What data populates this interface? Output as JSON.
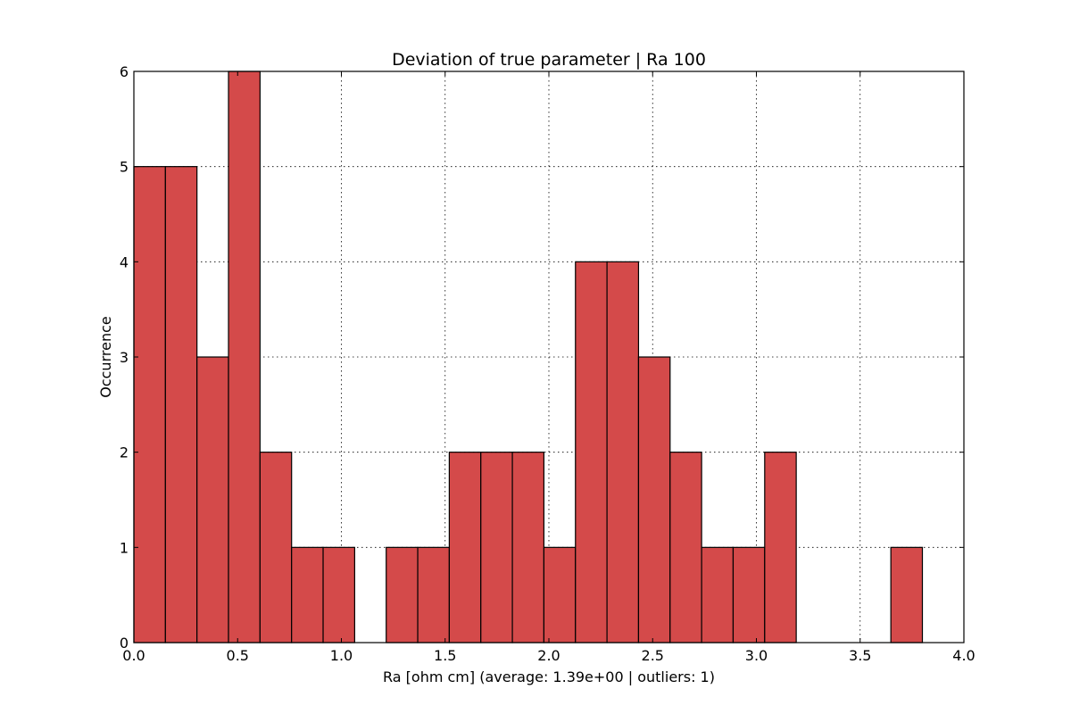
{
  "chart_data": {
    "type": "bar",
    "title": "Deviation of true parameter | Ra 100",
    "xlabel": "Ra [ohm cm] (average: 1.39e+00 | outliers: 1)",
    "ylabel": "Occurrence",
    "xlim": [
      0.0,
      4.0
    ],
    "ylim": [
      0,
      6
    ],
    "xticks": [
      "0.0",
      "0.5",
      "1.0",
      "1.5",
      "2.0",
      "2.5",
      "3.0",
      "3.5",
      "4.0"
    ],
    "yticks": [
      "0",
      "1",
      "2",
      "3",
      "4",
      "5",
      "6"
    ],
    "grid": true,
    "bar_color": "#d44a4a",
    "bins": [
      {
        "x0": 0.0,
        "x1": 0.152,
        "count": 5
      },
      {
        "x0": 0.152,
        "x1": 0.304,
        "count": 5
      },
      {
        "x0": 0.304,
        "x1": 0.456,
        "count": 3
      },
      {
        "x0": 0.456,
        "x1": 0.608,
        "count": 6
      },
      {
        "x0": 0.608,
        "x1": 0.76,
        "count": 2
      },
      {
        "x0": 0.76,
        "x1": 0.912,
        "count": 1
      },
      {
        "x0": 0.912,
        "x1": 1.064,
        "count": 1
      },
      {
        "x0": 1.064,
        "x1": 1.216,
        "count": 0
      },
      {
        "x0": 1.216,
        "x1": 1.368,
        "count": 1
      },
      {
        "x0": 1.368,
        "x1": 1.52,
        "count": 1
      },
      {
        "x0": 1.52,
        "x1": 1.672,
        "count": 2
      },
      {
        "x0": 1.672,
        "x1": 1.824,
        "count": 2
      },
      {
        "x0": 1.824,
        "x1": 1.976,
        "count": 2
      },
      {
        "x0": 1.976,
        "x1": 2.128,
        "count": 1
      },
      {
        "x0": 2.128,
        "x1": 2.28,
        "count": 4
      },
      {
        "x0": 2.28,
        "x1": 2.432,
        "count": 4
      },
      {
        "x0": 2.432,
        "x1": 2.584,
        "count": 3
      },
      {
        "x0": 2.584,
        "x1": 2.736,
        "count": 2
      },
      {
        "x0": 2.736,
        "x1": 2.888,
        "count": 1
      },
      {
        "x0": 2.888,
        "x1": 3.04,
        "count": 1
      },
      {
        "x0": 3.04,
        "x1": 3.192,
        "count": 2
      },
      {
        "x0": 3.192,
        "x1": 3.344,
        "count": 0
      },
      {
        "x0": 3.344,
        "x1": 3.496,
        "count": 0
      },
      {
        "x0": 3.496,
        "x1": 3.648,
        "count": 0
      },
      {
        "x0": 3.648,
        "x1": 3.8,
        "count": 1
      }
    ]
  }
}
